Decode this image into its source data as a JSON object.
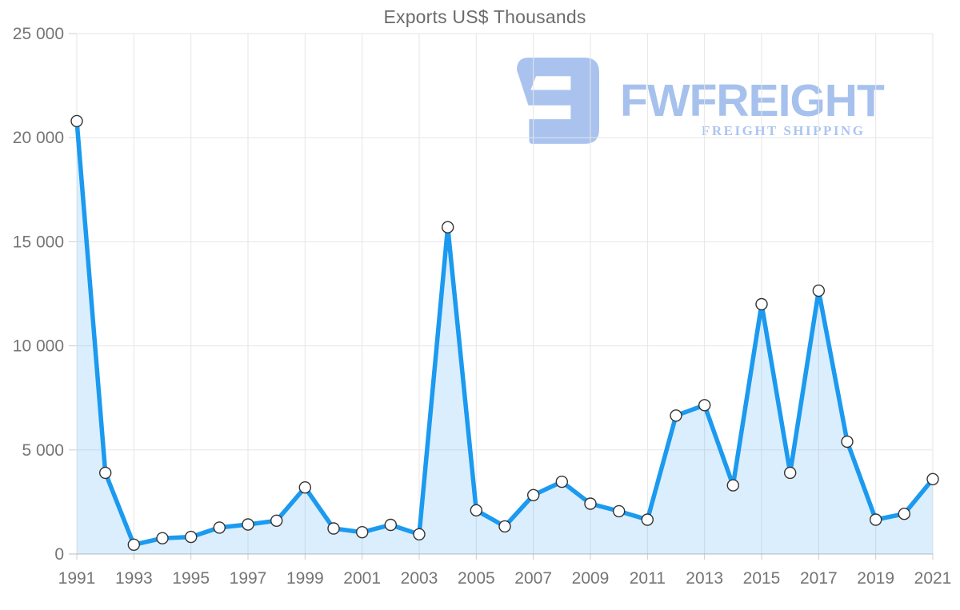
{
  "title": "Exports US$ Thousands",
  "logo": {
    "brand": "FWFREIGHT",
    "tagline": "FREIGHT SHIPPING",
    "icon": "stylized-backwards-e-freight-mark",
    "color": "#a9c3ee",
    "text_color": "#a6c1ed"
  },
  "chart_data": {
    "type": "area",
    "title": "Exports US$ Thousands",
    "x": [
      1991,
      1992,
      1993,
      1994,
      1995,
      1996,
      1997,
      1998,
      1999,
      2000,
      2001,
      2002,
      2003,
      2004,
      2005,
      2006,
      2007,
      2008,
      2009,
      2010,
      2011,
      2012,
      2013,
      2014,
      2015,
      2016,
      2017,
      2018,
      2019,
      2020,
      2021
    ],
    "values": [
      20800,
      3900,
      450,
      760,
      820,
      1270,
      1420,
      1600,
      3200,
      1230,
      1050,
      1400,
      950,
      15700,
      2100,
      1330,
      2830,
      3470,
      2420,
      2060,
      1650,
      6650,
      7150,
      3300,
      12000,
      3900,
      12650,
      5400,
      1650,
      1930,
      3600
    ],
    "xlabel": "",
    "ylabel": "",
    "ylim": [
      0,
      25000
    ],
    "y_ticks": [
      0,
      5000,
      10000,
      15000,
      20000,
      25000
    ],
    "y_tick_labels": [
      "0",
      "5 000",
      "10 000",
      "15 000",
      "20 000",
      "25 000"
    ],
    "x_tick_labels": [
      "1991",
      "1993",
      "1995",
      "1997",
      "1999",
      "2001",
      "2003",
      "2005",
      "2007",
      "2009",
      "2011",
      "2013",
      "2015",
      "2017",
      "2019",
      "2021"
    ],
    "grid": true,
    "legend": false,
    "line_color": "#1b9af0",
    "area_color": "rgba(30,152,241,0.16)",
    "gridline_color": "#e6e6e6",
    "axis_color": "#bdbdbd",
    "tick_color": "#cccccc",
    "marker": {
      "fill": "#ffffff",
      "stroke": "#333333",
      "radius": 7,
      "stroke_width": 1.4
    }
  }
}
